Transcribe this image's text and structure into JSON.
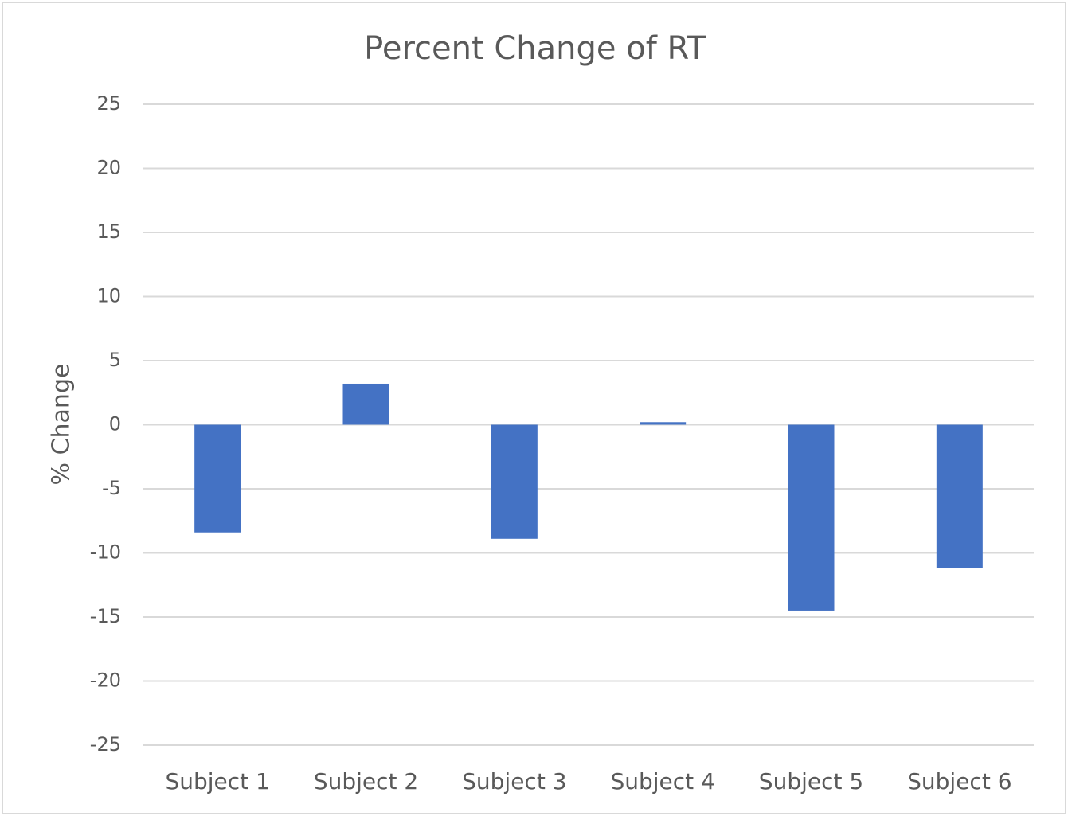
{
  "chart_data": {
    "type": "bar",
    "title": "Percent Change of RT",
    "y_label": "% Change",
    "categories": [
      "Subject 1",
      "Subject 2",
      "Subject 3",
      "Subject 4",
      "Subject 5",
      "Subject 6"
    ],
    "values": [
      -8.4,
      3.2,
      -8.9,
      0.2,
      -14.5,
      -11.2
    ],
    "color": "#4472c4",
    "ylim": [
      -25,
      25
    ],
    "yticks": [
      -25,
      -20,
      -15,
      -10,
      -5,
      0,
      5,
      10,
      15,
      20,
      25
    ],
    "grid": true
  }
}
